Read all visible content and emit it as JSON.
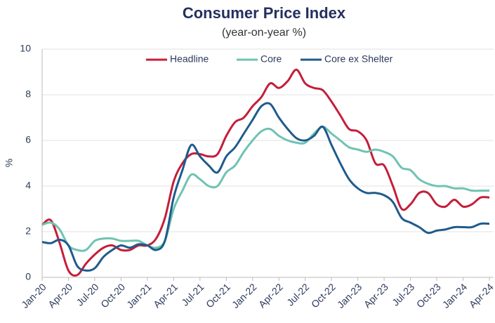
{
  "chart_data": {
    "type": "line",
    "title": "Consumer Price Index",
    "subtitle": "(year-on-year %)",
    "y_label": "%",
    "categories": [
      "Jan-20",
      null,
      null,
      "Apr-20",
      null,
      null,
      "Jul-20",
      null,
      null,
      "Oct-20",
      null,
      null,
      "Jan-21",
      null,
      null,
      "Apr-21",
      null,
      null,
      "Jul-21",
      null,
      null,
      "Oct-21",
      null,
      null,
      "Jan-22",
      null,
      null,
      "Apr-22",
      null,
      null,
      "Jul-22",
      null,
      null,
      "Oct-22",
      null,
      null,
      "Jan-23",
      null,
      null,
      "Apr-23",
      null,
      null,
      "Jul-23",
      null,
      null,
      "Oct-23",
      null,
      null,
      "Jan-24",
      null,
      null,
      "Apr-24"
    ],
    "series": [
      {
        "name": "Headline",
        "color": "#c41e3a",
        "values": [
          2.3,
          2.5,
          1.5,
          0.3,
          0.1,
          0.6,
          1.0,
          1.3,
          1.4,
          1.2,
          1.2,
          1.4,
          1.4,
          1.7,
          2.6,
          4.2,
          5.0,
          5.4,
          5.4,
          5.3,
          5.4,
          6.2,
          6.8,
          7.0,
          7.5,
          7.9,
          8.5,
          8.3,
          8.6,
          9.1,
          8.5,
          8.3,
          8.2,
          7.7,
          7.1,
          6.5,
          6.4,
          6.0,
          5.0,
          4.9,
          4.0,
          3.0,
          3.2,
          3.7,
          3.7,
          3.2,
          3.1,
          3.4,
          3.1,
          3.2,
          3.5,
          3.5
        ]
      },
      {
        "name": "Core",
        "color": "#6fc3b2",
        "values": [
          2.3,
          2.4,
          2.1,
          1.4,
          1.2,
          1.2,
          1.6,
          1.7,
          1.7,
          1.6,
          1.6,
          1.6,
          1.4,
          1.3,
          1.6,
          3.0,
          3.8,
          4.5,
          4.3,
          4.0,
          4.0,
          4.6,
          4.9,
          5.5,
          6.0,
          6.4,
          6.5,
          6.2,
          6.0,
          5.9,
          5.9,
          6.3,
          6.6,
          6.3,
          6.0,
          5.7,
          5.6,
          5.5,
          5.6,
          5.5,
          5.3,
          4.8,
          4.7,
          4.3,
          4.1,
          4.0,
          4.0,
          3.9,
          3.9,
          3.8,
          3.8,
          3.8
        ]
      },
      {
        "name": "Core ex Shelter",
        "color": "#1f5b8c",
        "values": [
          1.55,
          1.5,
          1.65,
          1.4,
          0.5,
          0.3,
          0.4,
          0.9,
          1.2,
          1.4,
          1.3,
          1.45,
          1.4,
          1.2,
          1.6,
          3.5,
          4.7,
          5.8,
          5.3,
          4.9,
          4.6,
          5.3,
          5.7,
          6.3,
          6.9,
          7.5,
          7.6,
          7.0,
          6.5,
          6.1,
          6.0,
          6.2,
          6.6,
          5.8,
          5.0,
          4.3,
          3.9,
          3.7,
          3.7,
          3.6,
          3.3,
          2.6,
          2.4,
          2.2,
          1.95,
          2.05,
          2.1,
          2.2,
          2.2,
          2.2,
          2.35,
          2.35
        ]
      }
    ],
    "ylim": [
      0,
      10
    ],
    "yticks": [
      0,
      2,
      4,
      6,
      8,
      10
    ],
    "grid": true,
    "legend": "top"
  }
}
